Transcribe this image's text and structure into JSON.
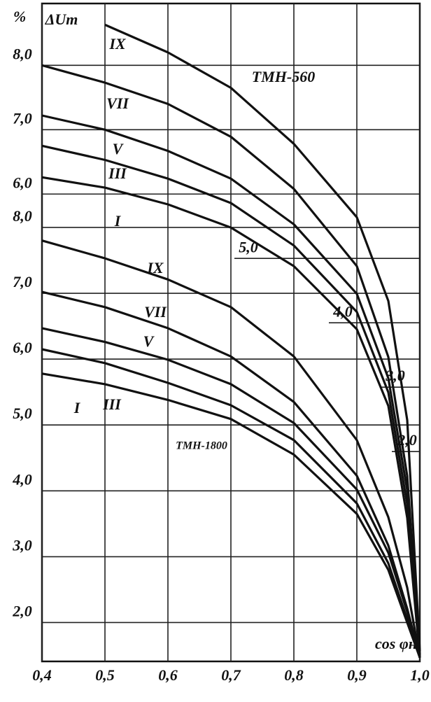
{
  "chart_data": {
    "type": "line",
    "x_label": "cos φн",
    "y_label_unit": "%",
    "y_label": "ΔUт",
    "annotations": [
      "TMH-560",
      "TMH-1800"
    ],
    "x": [
      0.4,
      0.5,
      0.6,
      0.7,
      0.8,
      0.9,
      0.95,
      0.98,
      1.0
    ],
    "xlim": [
      0.4,
      1.0
    ],
    "xticks": [
      {
        "value": 0.4,
        "label": "0,4"
      },
      {
        "value": 0.5,
        "label": "0,5"
      },
      {
        "value": 0.6,
        "label": "0,6"
      },
      {
        "value": 0.7,
        "label": "0,7"
      },
      {
        "value": 0.8,
        "label": "0,8"
      },
      {
        "value": 0.9,
        "label": "0,9"
      },
      {
        "value": 1.0,
        "label": "1,0"
      }
    ],
    "ylim": [
      1.41,
      11.4
    ],
    "yticks": [
      {
        "value": 2,
        "label": "2,0"
      },
      {
        "value": 3,
        "label": "3,0"
      },
      {
        "value": 4,
        "label": "4,0"
      },
      {
        "value": 5,
        "label": "5,0"
      },
      {
        "value": 6,
        "label": "6,0"
      },
      {
        "value": 7,
        "label": "7,0"
      },
      {
        "value": 8,
        "label": "8,0"
      }
    ],
    "y2lim": [
      -1.26,
      8.96
    ],
    "y2ticks": [
      {
        "value": 2,
        "label": "2,0"
      },
      {
        "value": 3,
        "label": "3,0"
      },
      {
        "value": 4,
        "label": "4,0"
      },
      {
        "value": 5,
        "label": "5,0"
      },
      {
        "value": 6,
        "label": "6,0"
      },
      {
        "value": 7,
        "label": "7,0"
      },
      {
        "value": 8,
        "label": "8,0"
      }
    ],
    "grid": true,
    "color": "#111111",
    "series": [
      {
        "name": "IX",
        "axis": "y2",
        "values": [
          null,
          8.63,
          8.2,
          7.65,
          6.78,
          5.64,
          4.34,
          2.49,
          -1.1
        ]
      },
      {
        "name": "VII",
        "axis": "y2",
        "values": [
          8.0,
          7.73,
          7.4,
          6.89,
          6.08,
          4.88,
          3.47,
          1.62,
          -1.15
        ]
      },
      {
        "name": "V",
        "axis": "y2",
        "values": [
          7.22,
          7.0,
          6.67,
          6.24,
          5.53,
          4.45,
          3.14,
          1.4,
          -1.2
        ]
      },
      {
        "name": "III",
        "axis": "y2",
        "values": [
          6.75,
          6.53,
          6.24,
          5.86,
          5.2,
          4.17,
          2.92,
          1.18,
          -1.2
        ]
      },
      {
        "name": "I",
        "axis": "y2",
        "values": [
          6.26,
          6.1,
          5.84,
          5.48,
          4.88,
          3.9,
          2.71,
          0.97,
          -1.2
        ]
      },
      {
        "name": "IX",
        "values": [
          7.8,
          7.53,
          7.21,
          6.79,
          6.04,
          4.77,
          3.6,
          2.53,
          1.47
        ]
      },
      {
        "name": "VII",
        "values": [
          7.02,
          6.79,
          6.47,
          6.04,
          5.35,
          4.23,
          3.17,
          2.21,
          1.47
        ]
      },
      {
        "name": "V",
        "values": [
          6.47,
          6.26,
          5.99,
          5.62,
          5.03,
          4.02,
          3.06,
          2.16,
          1.47
        ]
      },
      {
        "name": "III",
        "values": [
          6.15,
          5.94,
          5.64,
          5.3,
          4.77,
          3.81,
          2.9,
          2.05,
          1.47
        ]
      },
      {
        "name": "I",
        "values": [
          5.78,
          5.62,
          5.38,
          5.09,
          4.55,
          3.65,
          2.8,
          2.0,
          1.47
        ]
      }
    ]
  }
}
